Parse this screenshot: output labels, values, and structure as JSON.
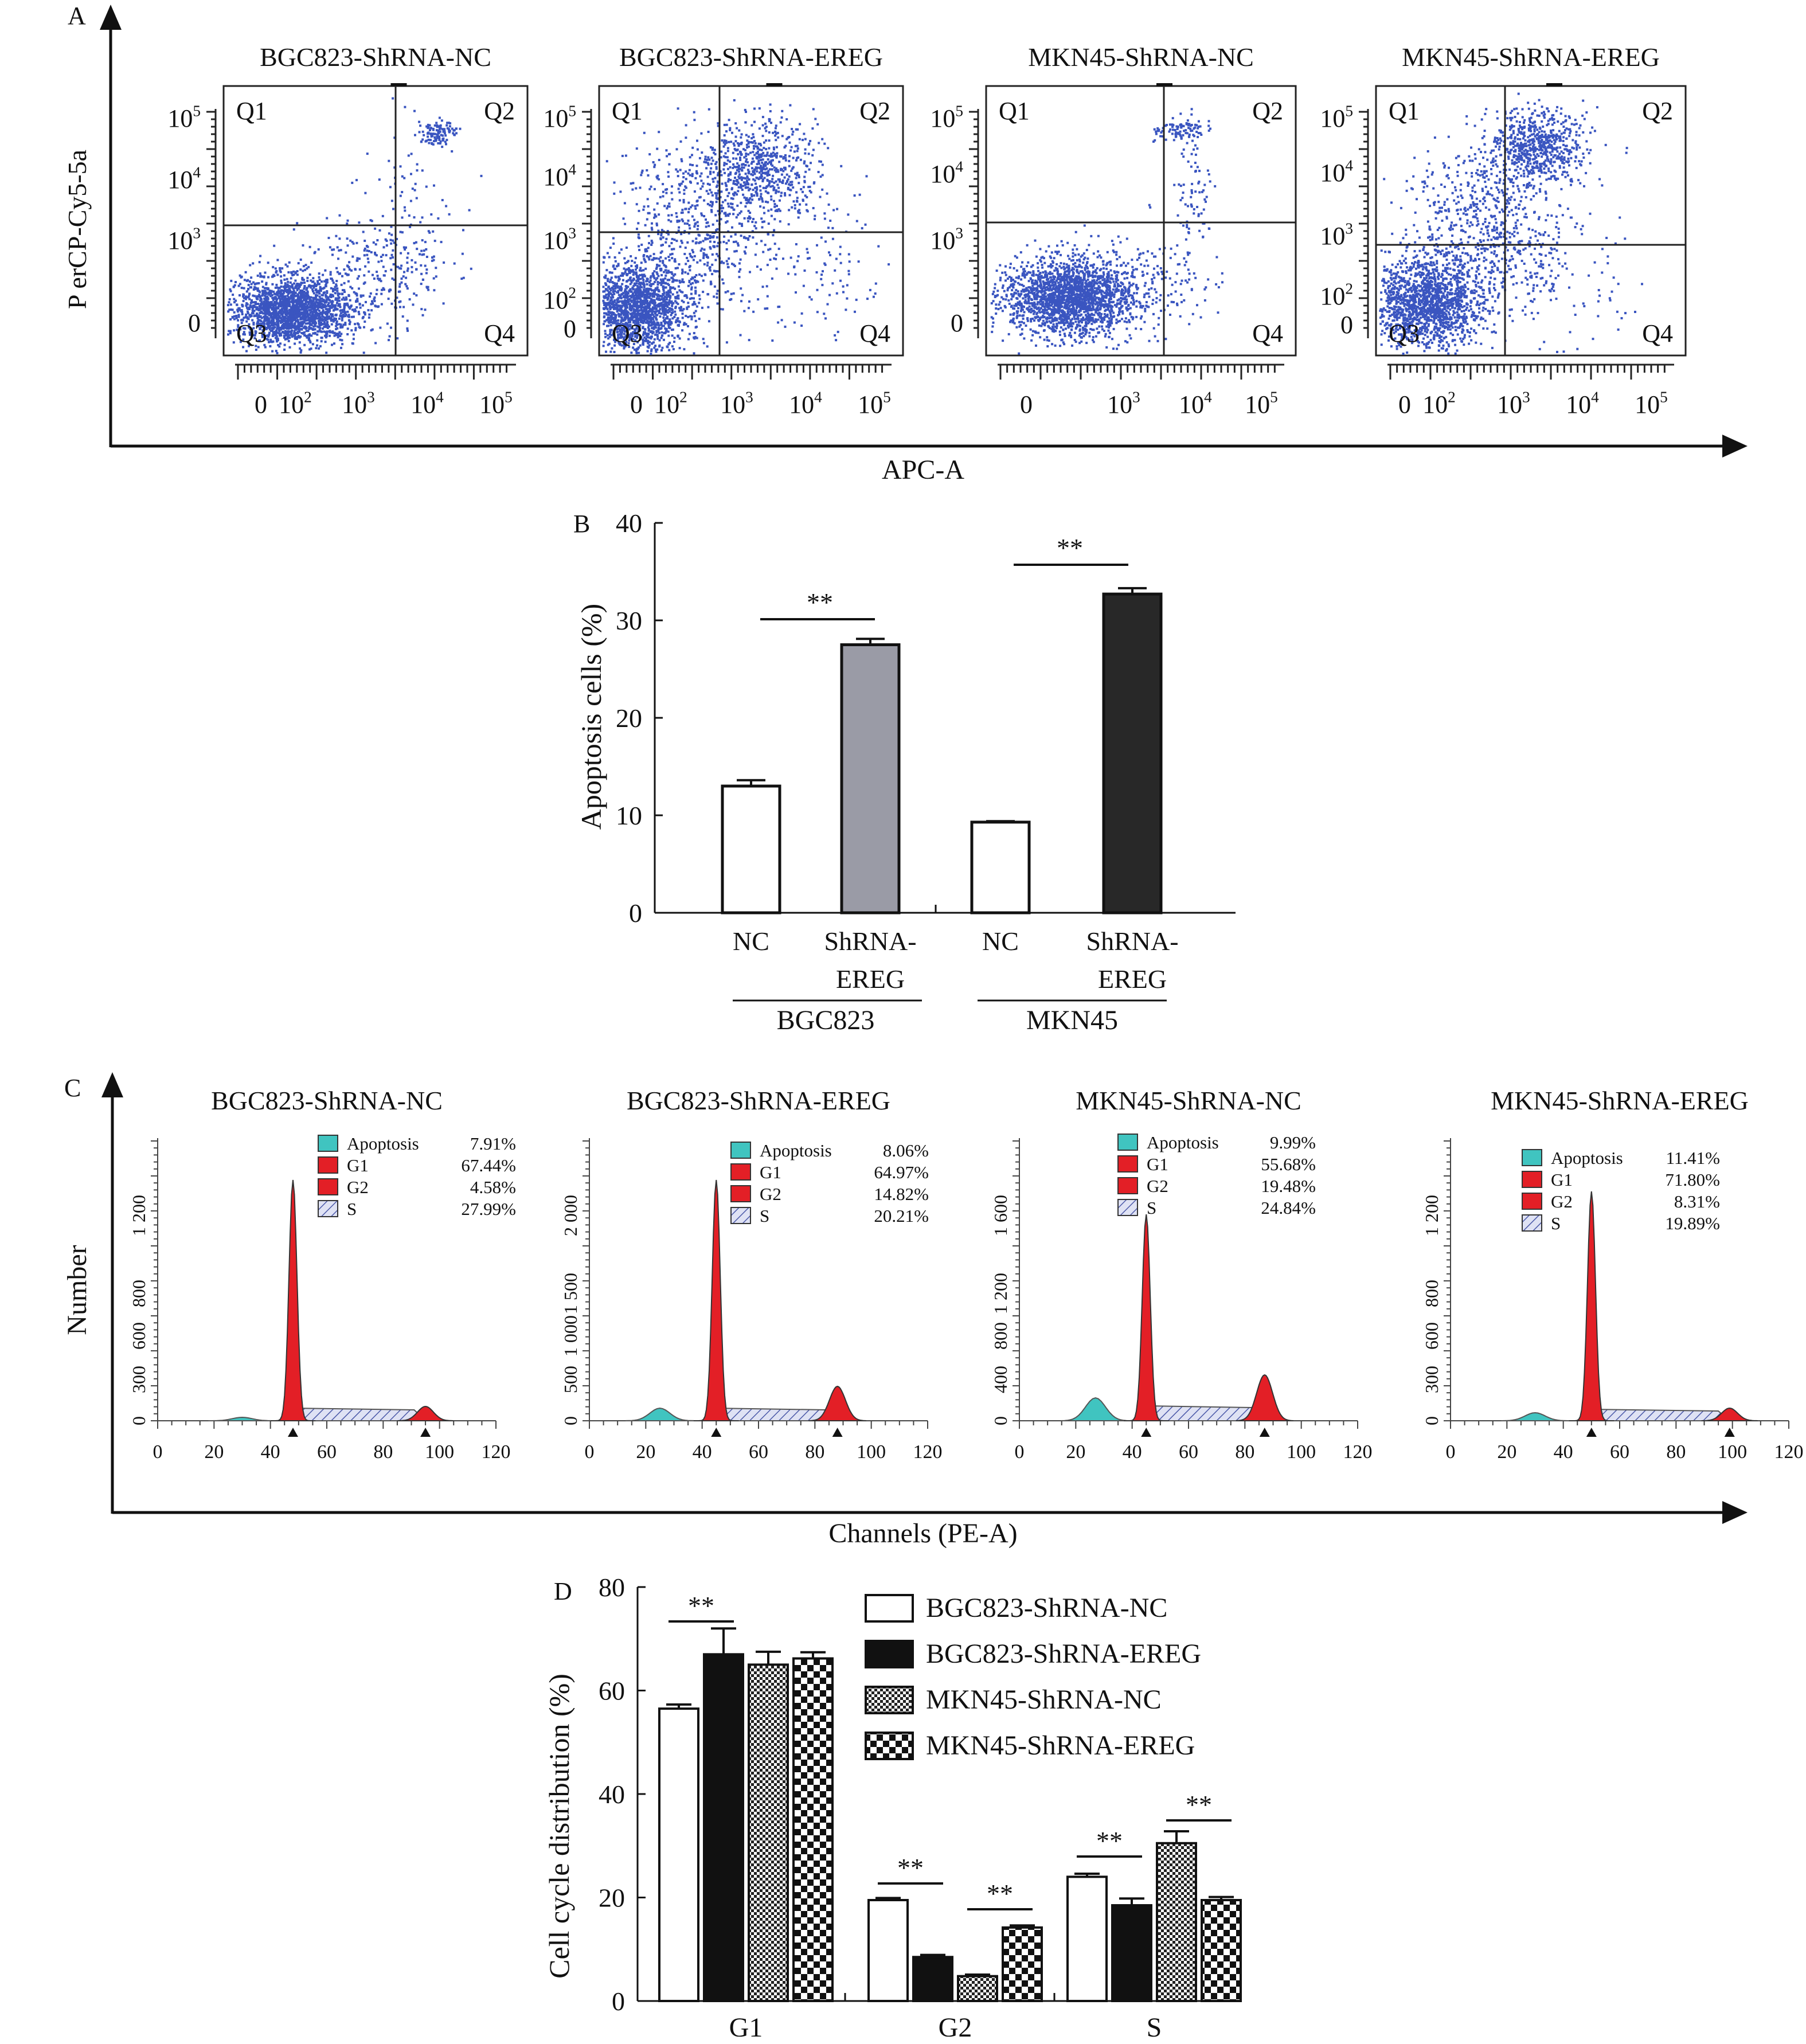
{
  "panel_letters": [
    "A",
    "B",
    "C",
    "D"
  ],
  "panelA": {
    "xlabel": "APC-A",
    "ylabel": "P erCP-Cy5-5a",
    "plots": [
      {
        "title": "BGC823-ShRNA-NC",
        "quadrants": [
          "Q1",
          "Q2",
          "Q3",
          "Q4"
        ],
        "yticks": [
          "10^5",
          "10^4",
          "10^3",
          "0"
        ],
        "xticks": [
          "0",
          "10^2",
          "10^3",
          "10^4",
          "10^5"
        ]
      },
      {
        "title": "BGC823-ShRNA-EREG",
        "quadrants": [
          "Q1",
          "Q2",
          "Q3",
          "Q4"
        ],
        "yticks": [
          "10^5",
          "10^4",
          "10^3",
          "10^2",
          "0"
        ],
        "xticks": [
          "0",
          "10^2",
          "10^3",
          "10^4",
          "10^5"
        ]
      },
      {
        "title": "MKN45-ShRNA-NC",
        "quadrants": [
          "Q1",
          "Q2",
          "",
          "Q4"
        ],
        "yticks": [
          "10^5",
          "10^4",
          "10^3",
          "0"
        ],
        "xticks": [
          "0",
          "10^3",
          "10^4",
          "10^5"
        ]
      },
      {
        "title": "MKN45-ShRNA-EREG",
        "quadrants": [
          "Q1",
          "Q2",
          "Q3",
          "Q4"
        ],
        "yticks": [
          "10^5",
          "10^4",
          "10^3",
          "10^2",
          "0"
        ],
        "xticks": [
          "0",
          "10^2",
          "10^3",
          "10^4",
          "10^5"
        ]
      }
    ]
  },
  "panelC": {
    "xlabel": "Channels (PE-A)",
    "ylabel": "Number",
    "xticks": [
      "0",
      "20",
      "40",
      "60",
      "80",
      "100",
      "120"
    ],
    "legend_labels": [
      "Apoptosis",
      "G1",
      "G2",
      "S"
    ],
    "plots": [
      {
        "title": "BGC823-ShRNA-NC",
        "yticks": [
          "0",
          "300",
          "600",
          "800",
          "1 200"
        ],
        "values": [
          "7.91%",
          "67.44%",
          "4.58%",
          "27.99%"
        ]
      },
      {
        "title": "BGC823-ShRNA-EREG",
        "yticks": [
          "0",
          "500",
          "1 000",
          "1 500",
          "2 000"
        ],
        "values": [
          "8.06%",
          "64.97%",
          "14.82%",
          "20.21%"
        ]
      },
      {
        "title": "MKN45-ShRNA-NC",
        "yticks": [
          "0",
          "400",
          "800",
          "1 200",
          "1 600"
        ],
        "values": [
          "9.99%",
          "55.68%",
          "19.48%",
          "24.84%"
        ]
      },
      {
        "title": "MKN45-ShRNA-EREG",
        "yticks": [
          "0",
          "300",
          "600",
          "800",
          "1 200"
        ],
        "values": [
          "11.41%",
          "71.80%",
          "8.31%",
          "19.89%"
        ]
      }
    ]
  },
  "colors": {
    "dots": "#3a55c0",
    "apoptosis": "#40c4c0",
    "g1": "#e31f26",
    "g2": "#e31f26",
    "bar_gray": "#9a9ba6",
    "bar_black": "#282828"
  },
  "chart_data": [
    {
      "type": "bar",
      "panel": "B",
      "ylabel": "Apoptosis cells (%)",
      "ylim": [
        0,
        40
      ],
      "yticks": [
        0,
        10,
        20,
        30,
        40
      ],
      "categories": [
        "NC",
        "ShRNA-EREG",
        "NC",
        "ShRNA-EREG"
      ],
      "groups": [
        "BGC823",
        "MKN45"
      ],
      "values": [
        13.0,
        27.5,
        9.3,
        32.7
      ],
      "errors": [
        0.6,
        0.6,
        0.1,
        0.6
      ],
      "significance": [
        "**",
        "**"
      ]
    },
    {
      "type": "bar",
      "panel": "D",
      "ylabel": "Cell cycle distribution (%)",
      "ylim": [
        0,
        80
      ],
      "yticks": [
        0,
        20,
        40,
        60,
        80
      ],
      "categories": [
        "G1",
        "G2",
        "S"
      ],
      "series": [
        {
          "name": "BGC823-ShRNA-NC",
          "values": [
            56.5,
            19.5,
            24.0
          ],
          "errors": [
            0.8,
            0.4,
            0.6
          ]
        },
        {
          "name": "BGC823-ShRNA-EREG",
          "values": [
            67.0,
            8.5,
            18.5
          ],
          "errors": [
            5.0,
            0.4,
            1.3
          ]
        },
        {
          "name": "MKN45-ShRNA-NC",
          "values": [
            65.0,
            4.8,
            30.5
          ],
          "errors": [
            2.5,
            0.3,
            2.3
          ]
        },
        {
          "name": "MKN45-ShRNA-EREG",
          "values": [
            66.2,
            14.2,
            19.5
          ],
          "errors": [
            1.2,
            0.4,
            0.6
          ]
        }
      ],
      "significance": [
        "**",
        "**",
        "**",
        "**",
        "**"
      ]
    }
  ]
}
